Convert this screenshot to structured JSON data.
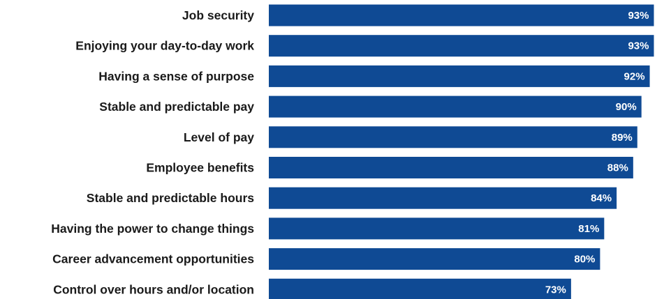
{
  "chart_data": {
    "type": "bar",
    "orientation": "horizontal",
    "categories": [
      "Job security",
      "Enjoying your day-to-day work",
      "Having a sense of purpose",
      "Stable and predictable pay",
      "Level of pay",
      "Employee benefits",
      "Stable and predictable hours",
      "Having the power to change things",
      "Career advancement opportunities",
      "Control over hours and/or location"
    ],
    "values": [
      93,
      93,
      92,
      90,
      89,
      88,
      84,
      81,
      80,
      73
    ],
    "value_labels": [
      "93%",
      "93%",
      "92%",
      "90%",
      "89%",
      "88%",
      "84%",
      "81%",
      "80%",
      "73%"
    ],
    "title": "",
    "xlabel": "",
    "ylabel": "",
    "xlim": [
      0,
      100
    ],
    "grid": false,
    "legend": "none",
    "bar_color": "#0f4a94",
    "label_color": "#ffffff"
  }
}
